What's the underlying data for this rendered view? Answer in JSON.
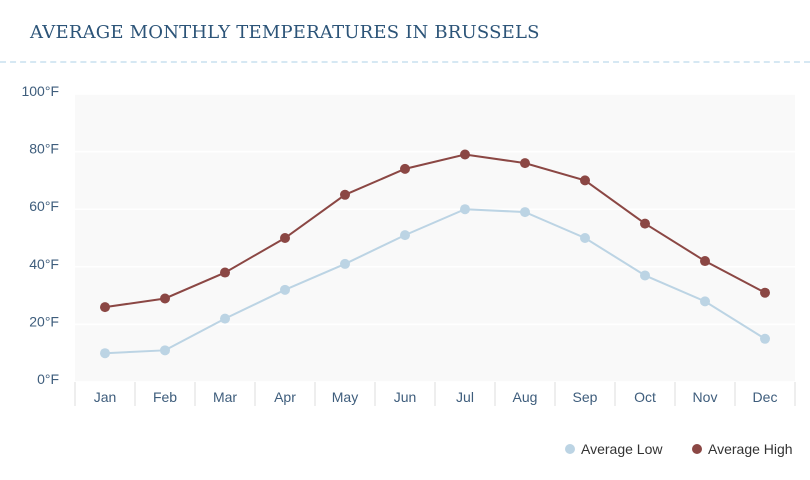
{
  "chart_data": {
    "type": "line",
    "title": "AVERAGE MONTHLY TEMPERATURES IN BRUSSELS",
    "categories": [
      "Jan",
      "Feb",
      "Mar",
      "Apr",
      "May",
      "Jun",
      "Jul",
      "Aug",
      "Sep",
      "Oct",
      "Nov",
      "Dec"
    ],
    "yticks": [
      "0°F",
      "20°F",
      "40°F",
      "60°F",
      "80°F",
      "100°F"
    ],
    "ylim": [
      0,
      100
    ],
    "grid": true,
    "legend_position": "bottom-right",
    "series": [
      {
        "name": "Average Low",
        "color": "#bcd4e4",
        "values": [
          10,
          11,
          22,
          32,
          41,
          51,
          60,
          59,
          50,
          37,
          28,
          15
        ]
      },
      {
        "name": "Average High",
        "color": "#8b4744",
        "values": [
          26,
          29,
          38,
          50,
          65,
          74,
          79,
          76,
          70,
          55,
          42,
          31
        ]
      }
    ]
  }
}
